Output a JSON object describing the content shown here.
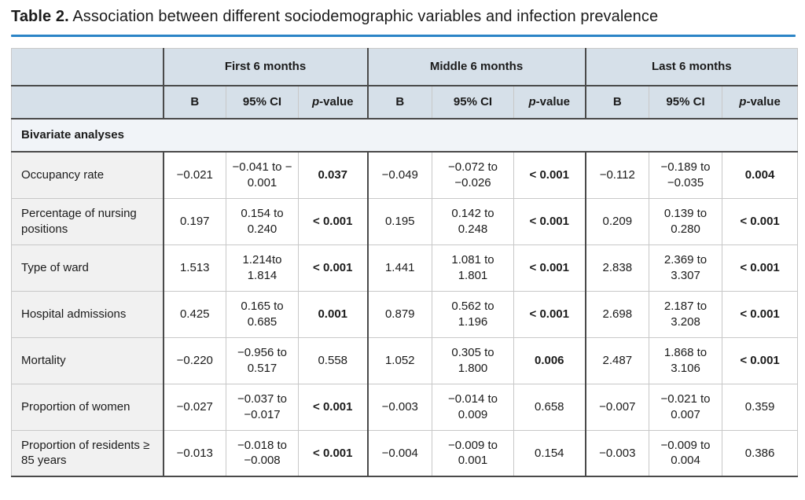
{
  "title": {
    "label": "Table 2.",
    "text": " Association between different sociodemographic variables and infection prevalence"
  },
  "colors": {
    "accent_rule": "#2b84c6",
    "header_bg": "#d6e0e9",
    "section_bg": "#f1f4f8",
    "label_bg": "#f1f1f1",
    "dark_border": "#4a4a4a",
    "light_border": "#c8c8c8",
    "text": "#1b1b1b"
  },
  "table": {
    "groups": [
      "First 6 months",
      "Middle 6 months",
      "Last 6 months"
    ],
    "subheaders": {
      "b": "B",
      "ci": "95% CI",
      "p_italic": "p",
      "p_suffix": "-value"
    },
    "section_header": "Bivariate analyses",
    "rows": [
      {
        "label": "Occupancy rate",
        "values": [
          "−0.021",
          "−0.041 to − 0.001",
          "0.037",
          "−0.049",
          "−0.072 to −0.026",
          "< 0.001",
          "−0.112",
          "−0.189 to −0.035",
          "0.004"
        ],
        "bold": [
          false,
          false,
          true,
          false,
          false,
          true,
          false,
          false,
          true
        ]
      },
      {
        "label": "Percentage of nursing positions",
        "values": [
          "0.197",
          "0.154 to 0.240",
          "< 0.001",
          "0.195",
          "0.142 to 0.248",
          "< 0.001",
          "0.209",
          "0.139 to 0.280",
          "< 0.001"
        ],
        "bold": [
          false,
          false,
          true,
          false,
          false,
          true,
          false,
          false,
          true
        ]
      },
      {
        "label": "Type of ward",
        "values": [
          "1.513",
          "1.214to 1.814",
          "< 0.001",
          "1.441",
          "1.081 to 1.801",
          "< 0.001",
          "2.838",
          "2.369 to 3.307",
          "< 0.001"
        ],
        "bold": [
          false,
          false,
          true,
          false,
          false,
          true,
          false,
          false,
          true
        ]
      },
      {
        "label": "Hospital admissions",
        "values": [
          "0.425",
          "0.165 to 0.685",
          "0.001",
          "0.879",
          "0.562 to 1.196",
          "< 0.001",
          "2.698",
          "2.187 to 3.208",
          "< 0.001"
        ],
        "bold": [
          false,
          false,
          true,
          false,
          false,
          true,
          false,
          false,
          true
        ]
      },
      {
        "label": "Mortality",
        "values": [
          "−0.220",
          "−0.956 to 0.517",
          "0.558",
          "1.052",
          "0.305 to 1.800",
          "0.006",
          "2.487",
          "1.868 to 3.106",
          "< 0.001"
        ],
        "bold": [
          false,
          false,
          false,
          false,
          false,
          true,
          false,
          false,
          true
        ]
      },
      {
        "label": "Proportion of women",
        "values": [
          "−0.027",
          "−0.037 to −0.017",
          "< 0.001",
          "−0.003",
          "−0.014 to 0.009",
          "0.658",
          "−0.007",
          "−0.021 to 0.007",
          "0.359"
        ],
        "bold": [
          false,
          false,
          true,
          false,
          false,
          false,
          false,
          false,
          false
        ]
      },
      {
        "label": "Proportion of residents ≥ 85 years",
        "values": [
          "−0.013",
          "−0.018 to −0.008",
          "< 0.001",
          "−0.004",
          "−0.009 to 0.001",
          "0.154",
          "−0.003",
          "−0.009 to 0.004",
          "0.386"
        ],
        "bold": [
          false,
          false,
          true,
          false,
          false,
          false,
          false,
          false,
          false
        ]
      }
    ]
  }
}
